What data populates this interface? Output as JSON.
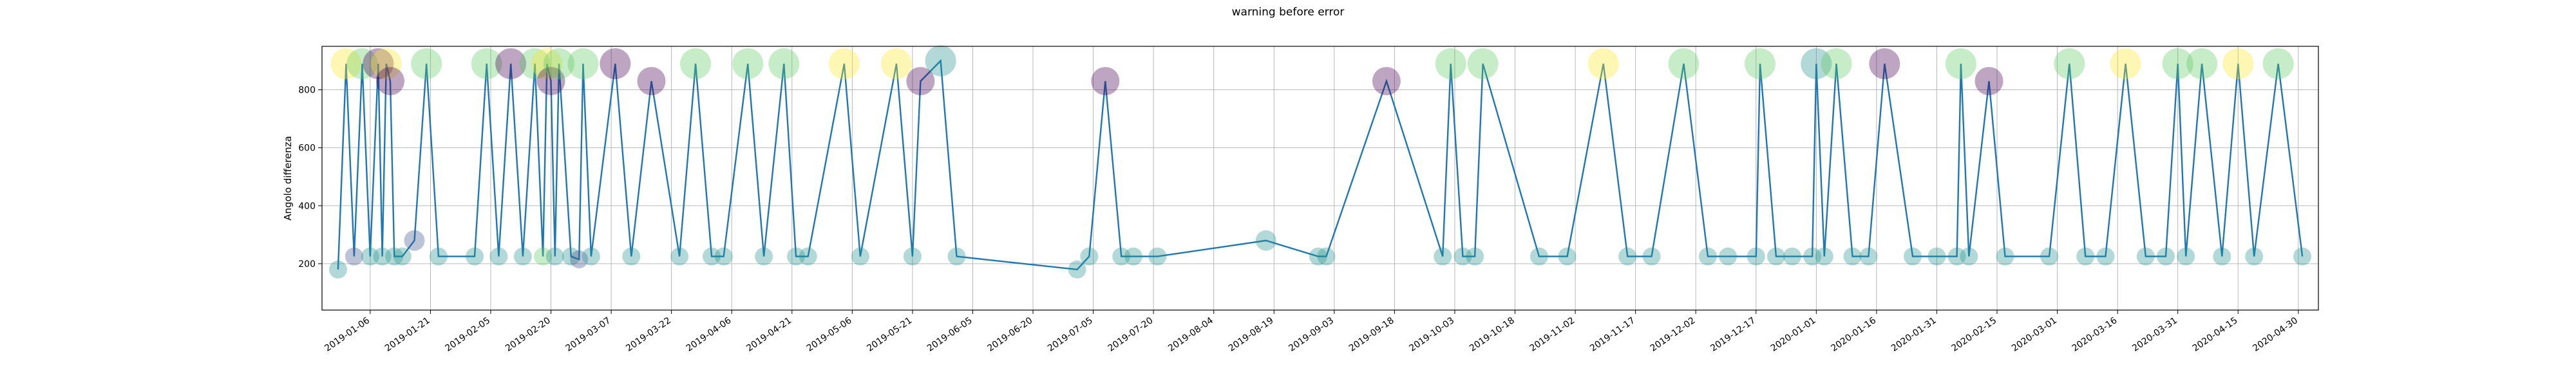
{
  "chart_data": {
    "type": "scatter",
    "title": "warning before error",
    "xlabel": "",
    "ylabel": "Angolo differenza",
    "x_ticks": [
      "2019-01-06",
      "2019-01-21",
      "2019-02-05",
      "2019-02-20",
      "2019-03-07",
      "2019-03-22",
      "2019-04-06",
      "2019-04-21",
      "2019-05-06",
      "2019-05-21",
      "2019-06-05",
      "2019-06-20",
      "2019-07-05",
      "2019-07-20",
      "2019-08-04",
      "2019-08-19",
      "2019-09-03",
      "2019-09-18",
      "2019-10-03",
      "2019-10-18",
      "2019-11-02",
      "2019-11-17",
      "2019-12-02",
      "2019-12-17",
      "2020-01-01",
      "2020-01-16",
      "2020-01-31",
      "2020-02-15",
      "2020-03-01",
      "2020-03-16",
      "2020-03-31",
      "2020-04-15",
      "2020-04-30"
    ],
    "xlim": [
      "2018-12-25",
      "2020-05-05"
    ],
    "y_ticks": [
      200,
      400,
      600,
      800
    ],
    "ylim": [
      40,
      950
    ],
    "grid": true,
    "line_color": "#1f77b4",
    "colormap": [
      "#440154",
      "#3b528b",
      "#21918c",
      "#5ec962",
      "#fde725"
    ],
    "x": [
      "2018-12-29",
      "2018-12-31",
      "2019-01-02",
      "2019-01-04",
      "2019-01-06",
      "2019-01-08",
      "2019-01-09",
      "2019-01-10",
      "2019-01-11",
      "2019-01-12",
      "2019-01-14",
      "2019-01-17",
      "2019-01-20",
      "2019-01-23",
      "2019-02-01",
      "2019-02-04",
      "2019-02-07",
      "2019-02-10",
      "2019-02-13",
      "2019-02-16",
      "2019-02-18",
      "2019-02-19",
      "2019-02-20",
      "2019-02-21",
      "2019-02-22",
      "2019-02-25",
      "2019-02-27",
      "2019-02-28",
      "2019-03-02",
      "2019-03-08",
      "2019-03-12",
      "2019-03-17",
      "2019-03-24",
      "2019-03-28",
      "2019-04-01",
      "2019-04-04",
      "2019-04-10",
      "2019-04-14",
      "2019-04-19",
      "2019-04-22",
      "2019-04-25",
      "2019-05-04",
      "2019-05-08",
      "2019-05-17",
      "2019-05-21",
      "2019-05-23",
      "2019-05-28",
      "2019-06-01",
      "2019-07-01",
      "2019-07-04",
      "2019-07-08",
      "2019-07-12",
      "2019-07-15",
      "2019-07-21",
      "2019-08-17",
      "2019-08-30",
      "2019-09-01",
      "2019-09-16",
      "2019-09-30",
      "2019-10-02",
      "2019-10-05",
      "2019-10-08",
      "2019-10-10",
      "2019-10-24",
      "2019-10-31",
      "2019-11-09",
      "2019-11-15",
      "2019-11-21",
      "2019-11-29",
      "2019-12-05",
      "2019-12-10",
      "2019-12-17",
      "2019-12-18",
      "2019-12-22",
      "2019-12-26",
      "2019-12-31",
      "2020-01-01",
      "2020-01-03",
      "2020-01-06",
      "2020-01-10",
      "2020-01-14",
      "2020-01-18",
      "2020-01-25",
      "2020-01-31",
      "2020-02-05",
      "2020-02-06",
      "2020-02-08",
      "2020-02-13",
      "2020-02-17",
      "2020-02-28",
      "2020-03-04",
      "2020-03-08",
      "2020-03-13",
      "2020-03-18",
      "2020-03-23",
      "2020-03-28",
      "2020-03-31",
      "2020-04-02",
      "2020-04-06",
      "2020-04-11",
      "2020-04-15",
      "2020-04-19",
      "2020-04-25",
      "2020-05-01"
    ],
    "y": [
      180,
      890,
      225,
      890,
      225,
      890,
      225,
      890,
      830,
      225,
      225,
      280,
      890,
      225,
      225,
      890,
      225,
      890,
      225,
      890,
      225,
      890,
      830,
      225,
      890,
      225,
      215,
      890,
      225,
      890,
      225,
      830,
      225,
      890,
      225,
      225,
      890,
      225,
      890,
      225,
      225,
      890,
      225,
      890,
      225,
      830,
      900,
      225,
      180,
      225,
      830,
      225,
      225,
      225,
      280,
      225,
      225,
      830,
      225,
      890,
      225,
      225,
      890,
      225,
      225,
      890,
      225,
      225,
      890,
      225,
      225,
      225,
      890,
      225,
      225,
      225,
      890,
      225,
      890,
      225,
      225,
      890,
      225,
      225,
      225,
      890,
      225,
      830,
      225,
      225,
      890,
      225,
      225,
      890,
      225,
      225,
      890,
      225,
      890,
      225,
      890,
      225,
      890,
      225
    ],
    "color_index": [
      2,
      4,
      1,
      3,
      2,
      0,
      2,
      4,
      0,
      2,
      2,
      1,
      3,
      2,
      2,
      3,
      2,
      0,
      2,
      3,
      3,
      4,
      0,
      2,
      3,
      2,
      1,
      3,
      2,
      0,
      2,
      0,
      2,
      3,
      2,
      2,
      3,
      2,
      3,
      2,
      2,
      4,
      2,
      4,
      2,
      0,
      2,
      2,
      2,
      2,
      0,
      2,
      2,
      2,
      2,
      2,
      2,
      0,
      2,
      3,
      2,
      2,
      3,
      2,
      2,
      4,
      2,
      2,
      3,
      2,
      2,
      2,
      3,
      2,
      2,
      2,
      2,
      2,
      3,
      2,
      2,
      0,
      2,
      2,
      2,
      3,
      2,
      0,
      2,
      2,
      3,
      2,
      2,
      4,
      2,
      2,
      3,
      2,
      3,
      2,
      4,
      2,
      3,
      2
    ],
    "size": [
      14,
      24,
      14,
      24,
      14,
      24,
      14,
      24,
      22,
      14,
      14,
      16,
      24,
      14,
      14,
      24,
      14,
      24,
      14,
      24,
      14,
      24,
      22,
      14,
      24,
      14,
      14,
      24,
      14,
      24,
      14,
      22,
      14,
      24,
      14,
      14,
      24,
      14,
      24,
      14,
      14,
      24,
      14,
      24,
      14,
      22,
      24,
      14,
      14,
      14,
      22,
      14,
      14,
      14,
      16,
      14,
      14,
      22,
      14,
      24,
      14,
      14,
      24,
      14,
      14,
      24,
      14,
      14,
      24,
      14,
      14,
      14,
      24,
      14,
      14,
      14,
      24,
      14,
      24,
      14,
      14,
      24,
      14,
      14,
      14,
      24,
      14,
      22,
      14,
      14,
      24,
      14,
      14,
      24,
      14,
      14,
      24,
      14,
      24,
      14,
      24,
      14,
      24,
      14
    ]
  }
}
